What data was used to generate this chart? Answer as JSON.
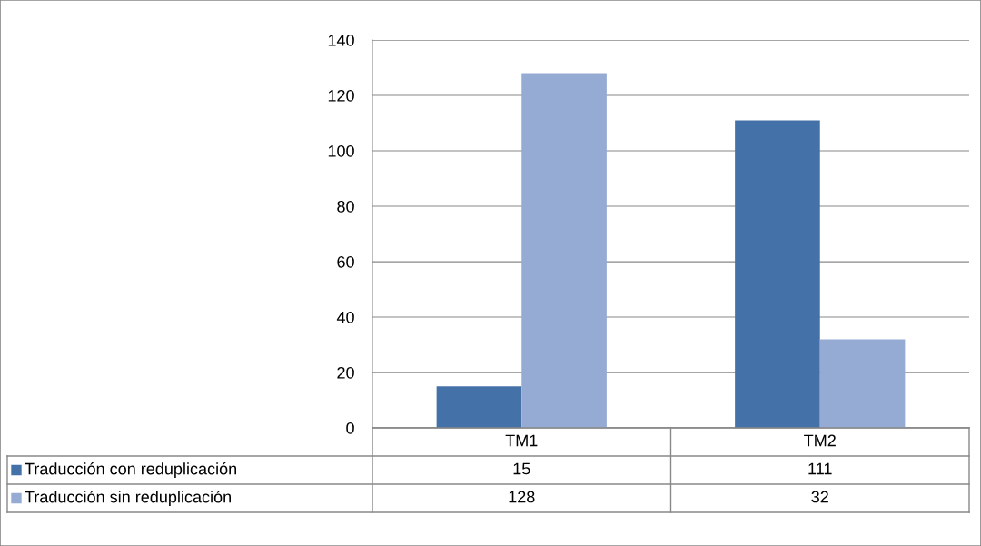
{
  "chart_data": {
    "type": "bar",
    "categories": [
      "TM1",
      "TM2"
    ],
    "series": [
      {
        "name": "Traducción con reduplicación",
        "color": "#4472a8",
        "values": [
          15,
          111
        ]
      },
      {
        "name": "Traducción sin reduplicación",
        "color": "#95abd3",
        "values": [
          128,
          32
        ]
      }
    ],
    "ylim": [
      0,
      140
    ],
    "yticks": [
      0,
      20,
      40,
      60,
      80,
      100,
      120,
      140
    ],
    "grid": "y",
    "data_labels": true,
    "legend": "bottom"
  }
}
